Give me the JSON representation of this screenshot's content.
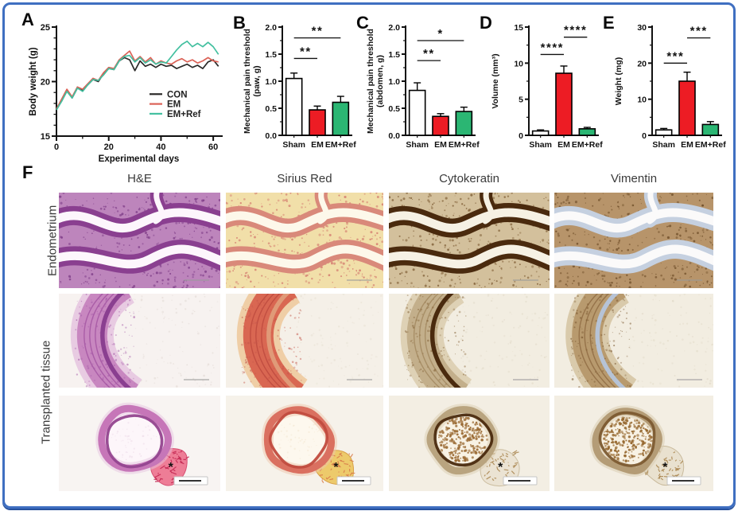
{
  "figure": {
    "border_color": "#3f6fc1",
    "background": "#ffffff",
    "accent_red": "#ed1c24",
    "accent_green": "#2bb673"
  },
  "panel_letters": [
    "A",
    "B",
    "C",
    "D",
    "E",
    "F"
  ],
  "chart_data": [
    {
      "id": "A",
      "type": "line",
      "xlabel": "Experimental days",
      "ylabel": "Body weight (g)",
      "xlim": [
        0,
        63
      ],
      "ylim": [
        15,
        25
      ],
      "xticks": [
        0,
        20,
        40,
        60
      ],
      "yticks": [
        15,
        20,
        25
      ],
      "xminor": 10,
      "yminor": 1,
      "legend_position": "bottom-right",
      "x": [
        0,
        2,
        4,
        6,
        8,
        10,
        12,
        14,
        16,
        18,
        20,
        22,
        24,
        26,
        28,
        30,
        32,
        34,
        36,
        38,
        40,
        42,
        44,
        46,
        48,
        50,
        52,
        54,
        56,
        58,
        60,
        62
      ],
      "series": [
        {
          "name": "CON",
          "color": "#2b2a29",
          "values": [
            17.4,
            18.3,
            19.2,
            18.5,
            19.4,
            19.2,
            19.7,
            20.2,
            20.0,
            20.7,
            21.2,
            21.1,
            21.9,
            22.2,
            22.0,
            21.0,
            21.9,
            21.4,
            21.6,
            21.3,
            21.6,
            21.4,
            21.5,
            21.2,
            21.4,
            21.6,
            21.3,
            21.5,
            21.2,
            21.8,
            22.0,
            21.4
          ]
        },
        {
          "name": "EM",
          "color": "#db6156",
          "values": [
            17.5,
            18.4,
            19.3,
            18.6,
            19.5,
            19.3,
            19.8,
            20.3,
            20.1,
            20.8,
            21.3,
            21.2,
            22.0,
            22.4,
            22.8,
            21.9,
            22.3,
            21.8,
            22.2,
            21.6,
            21.9,
            21.7,
            21.6,
            21.9,
            22.1,
            21.8,
            22.0,
            21.7,
            21.9,
            22.2,
            21.9,
            21.8
          ]
        },
        {
          "name": "EM+Ref",
          "color": "#43c0a0",
          "values": [
            17.4,
            18.2,
            19.1,
            18.5,
            19.4,
            19.1,
            19.7,
            20.2,
            20.1,
            20.6,
            21.2,
            21.1,
            21.9,
            22.3,
            22.4,
            21.8,
            22.2,
            21.7,
            22.0,
            21.6,
            21.8,
            21.7,
            22.3,
            22.9,
            23.4,
            23.7,
            23.2,
            23.5,
            23.2,
            23.6,
            23.2,
            22.5
          ]
        }
      ]
    },
    {
      "id": "B",
      "type": "bar",
      "ylabel": [
        "Mechanical pain threshold",
        "(paw, g)"
      ],
      "categories": [
        "Sham",
        "EM",
        "EM+Ref"
      ],
      "values": [
        1.05,
        0.47,
        0.61
      ],
      "errors": [
        0.1,
        0.07,
        0.11
      ],
      "bar_colors": [
        "#ffffff",
        "#ed1c24",
        "#2bb673"
      ],
      "ylim": [
        0,
        2
      ],
      "yticks": [
        0,
        0.5,
        1,
        1.5,
        2
      ],
      "ytick_labels": [
        "0.0",
        "0.5",
        "1.0",
        "1.5",
        "2.0"
      ],
      "significance": [
        {
          "from": 0,
          "to": 1,
          "label": "**",
          "y": 1.42
        },
        {
          "from": 0,
          "to": 2,
          "label": "**",
          "y": 1.8
        }
      ]
    },
    {
      "id": "C",
      "type": "bar",
      "ylabel": [
        "Mechanical pain threshold",
        "(abdomen, g)"
      ],
      "categories": [
        "Sham",
        "EM",
        "EM+Ref"
      ],
      "values": [
        0.83,
        0.35,
        0.44
      ],
      "errors": [
        0.14,
        0.05,
        0.08
      ],
      "bar_colors": [
        "#ffffff",
        "#ed1c24",
        "#2bb673"
      ],
      "ylim": [
        0,
        2
      ],
      "yticks": [
        0,
        0.5,
        1,
        1.5,
        2
      ],
      "ytick_labels": [
        "0.0",
        "0.5",
        "1.0",
        "1.5",
        "2.0"
      ],
      "significance": [
        {
          "from": 0,
          "to": 1,
          "label": "**",
          "y": 1.38
        },
        {
          "from": 0,
          "to": 2,
          "label": "*",
          "y": 1.75
        }
      ]
    },
    {
      "id": "D",
      "type": "bar",
      "ylabel": "Volume (mm³)",
      "categories": [
        "Sham",
        "EM",
        "EM+Ref"
      ],
      "values": [
        0.6,
        8.6,
        0.9
      ],
      "errors": [
        0.15,
        1.0,
        0.2
      ],
      "bar_colors": [
        "#ffffff",
        "#ed1c24",
        "#2bb673"
      ],
      "ylim": [
        0,
        15
      ],
      "yticks": [
        0,
        5,
        10,
        15
      ],
      "ytick_labels": [
        "0",
        "5",
        "10",
        "15"
      ],
      "significance": [
        {
          "from": 0,
          "to": 1,
          "label": "****",
          "y": 11.2
        },
        {
          "from": 1,
          "to": 2,
          "label": "****",
          "y": 13.6
        }
      ]
    },
    {
      "id": "E",
      "type": "bar",
      "ylabel": "Weight (mg)",
      "categories": [
        "Sham",
        "EM",
        "EM+Ref"
      ],
      "values": [
        1.5,
        15.0,
        3.0
      ],
      "errors": [
        0.4,
        2.5,
        0.8
      ],
      "bar_colors": [
        "#ffffff",
        "#ed1c24",
        "#2bb673"
      ],
      "ylim": [
        0,
        30
      ],
      "yticks": [
        0,
        10,
        20,
        30
      ],
      "ytick_labels": [
        "0",
        "10",
        "20",
        "30"
      ],
      "significance": [
        {
          "from": 0,
          "to": 1,
          "label": "***",
          "y": 20.0
        },
        {
          "from": 1,
          "to": 2,
          "label": "***",
          "y": 27.0
        }
      ]
    }
  ],
  "histology": {
    "column_headers": [
      "H&E",
      "Sirius Red",
      "Cytokeratin",
      "Vimentin"
    ],
    "row_labels": [
      "Endometrium",
      "Transplanted tissue"
    ],
    "asterisk_label": "*",
    "rows": [
      {
        "name": "endometrium",
        "kind": "folds",
        "cells": [
          {
            "stain": "he",
            "palette": {
              "base": "#bd85bc",
              "speck": "#7c3a86",
              "epi": "#8a3f90",
              "lumen": "#fdf6fc"
            }
          },
          {
            "stain": "sirius-red",
            "palette": {
              "base": "#f1dfa9",
              "speck": "#d2756b",
              "epi": "#d9897a",
              "lumen": "#fdf8ea"
            }
          },
          {
            "stain": "cytokeratin",
            "palette": {
              "base": "#d3c09c",
              "speck": "#7e5c34",
              "epi": "#4a2a0e",
              "lumen": "#f6f1e4"
            }
          },
          {
            "stain": "vimentin",
            "palette": {
              "base": "#b7946a",
              "speck": "#6e4d28",
              "epi": "#c5d0e0",
              "lumen": "#fbfafa"
            }
          }
        ]
      },
      {
        "name": "transplanted-tissue-wall",
        "kind": "arc",
        "cells": [
          {
            "stain": "he",
            "palette": {
              "bg": "#f7f2f0",
              "outer": "#e6c6e0",
              "wall": "#c887c0",
              "streak": "#9c4c9c",
              "epi": "#8a3f90",
              "speck": "#a55ca8",
              "ispeck": "#ddd3cd"
            }
          },
          {
            "stain": "sirius-red",
            "palette": {
              "bg": "#f5f0e8",
              "outer": "#eeca9f",
              "wall": "#d96752",
              "streak": "#b8453a",
              "epi": "#e09a78",
              "speck": "#c4564a",
              "ispeck": "#e3dccc"
            }
          },
          {
            "stain": "cytokeratin",
            "palette": {
              "bg": "#f2ede1",
              "outer": "#dccdb0",
              "wall": "#c3af8b",
              "streak": "#9c8159",
              "epi": "#4a2a0e",
              "speck": "#8a693f",
              "ispeck": "#ddd5c2"
            }
          },
          {
            "stain": "vimentin",
            "palette": {
              "bg": "#f2ede1",
              "outer": "#d6c5a5",
              "wall": "#b89a6e",
              "streak": "#87623a",
              "epi": "#b6c3d6",
              "speck": "#7a5830",
              "ispeck": "#ddd5c2"
            }
          }
        ]
      },
      {
        "name": "transplanted-tissue-whole",
        "kind": "ring",
        "cells": [
          {
            "stain": "he",
            "asterisk": true,
            "palette": {
              "bg": "#f8f4f2",
              "interior": "#fdf6fa",
              "wall": "#c676b8",
              "epi": "#93458f",
              "outer": "#e6c4e0",
              "lobe": "#ee7d96",
              "lobeEdge": "#d64f72",
              "lobeSpeck": "#c22550",
              "ispeck": "#e8d4e4"
            }
          },
          {
            "stain": "sirius-red",
            "asterisk": true,
            "palette": {
              "bg": "#f6f2ea",
              "interior": "#fdf8ee",
              "wall": "#da7060",
              "epi": "#c14b3e",
              "outer": "#eec6ac",
              "lobe": "#edca6b",
              "lobeEdge": "#d9a148",
              "lobeSpeck": "#d97b4a",
              "ispeck": "#efe0c8"
            }
          },
          {
            "stain": "cytokeratin",
            "asterisk": true,
            "palette": {
              "bg": "#f3eee3",
              "interior": "#f8f2e4",
              "wall": "#b9a47f",
              "epi": "#4a2a0e",
              "outer": "#dbcdb1",
              "lobe": "#ebe3d3",
              "lobeEdge": "#cbbd9f",
              "lobeSpeck": "#a9854e",
              "contents": "#9a6a33"
            }
          },
          {
            "stain": "vimentin",
            "asterisk": true,
            "palette": {
              "bg": "#f3eee3",
              "interior": "#f8f2e4",
              "wall": "#b49c76",
              "epi": "#7c5a30",
              "outer": "#d8caae",
              "lobe": "#e9e1cf",
              "lobeEdge": "#c9ba9c",
              "lobeSpeck": "#a9854e",
              "contents": "#96682f"
            }
          }
        ]
      }
    ]
  }
}
